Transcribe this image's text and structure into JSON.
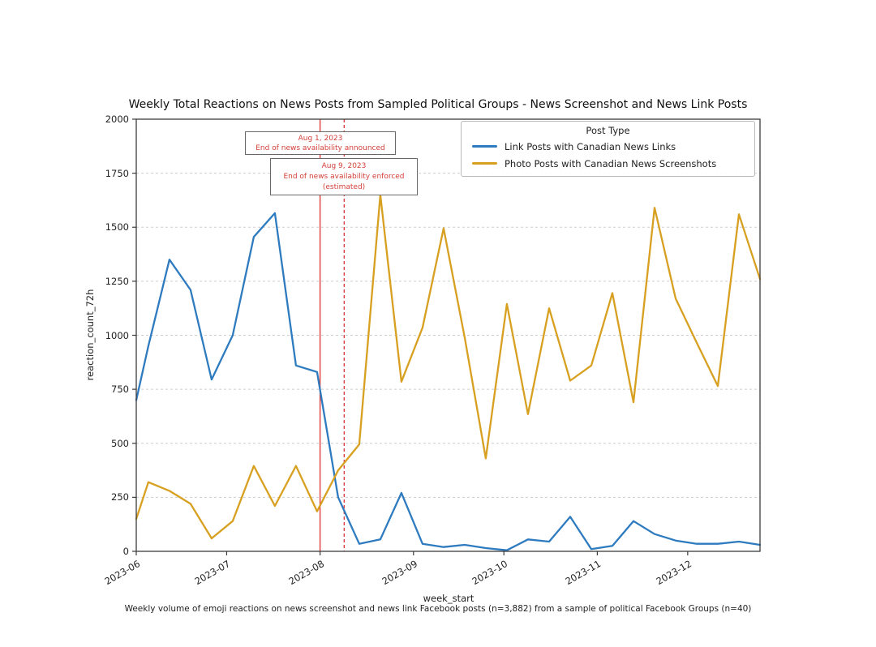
{
  "caption": "Weekly volume of emoji reactions on news screenshot and news link Facebook posts (n=3,882) from a sample of political Facebook Groups (n=40)",
  "colors": {
    "axis": "#3c3c3c",
    "grid": "#cdcdcd",
    "text": "#1a1a1a",
    "vline_red": "#e03c3c",
    "annotation_text": "#d4403a"
  },
  "chart_data": {
    "type": "line",
    "title": "Weekly Total Reactions on News Posts from Sampled Political Groups - News Screenshot and News Link Posts",
    "xlabel": "week_start",
    "ylabel": "reaction_count_72h",
    "xlim": [
      "2023-06-01",
      "2023-12-25"
    ],
    "ylim": [
      0,
      2000
    ],
    "grid": "horizontal-dashed",
    "legend": {
      "title": "Post Type",
      "position": "upper-right"
    },
    "yticks": [
      0,
      250,
      500,
      750,
      1000,
      1250,
      1500,
      1750,
      2000
    ],
    "xticks": [
      {
        "label": "2023-06",
        "date": "2023-06-01"
      },
      {
        "label": "2023-07",
        "date": "2023-07-01"
      },
      {
        "label": "2023-08",
        "date": "2023-08-01"
      },
      {
        "label": "2023-09",
        "date": "2023-09-01"
      },
      {
        "label": "2023-10",
        "date": "2023-10-01"
      },
      {
        "label": "2023-11",
        "date": "2023-11-01"
      },
      {
        "label": "2023-12",
        "date": "2023-12-01"
      }
    ],
    "weeks": [
      "2023-06-01",
      "2023-06-05",
      "2023-06-12",
      "2023-06-19",
      "2023-06-26",
      "2023-07-03",
      "2023-07-10",
      "2023-07-17",
      "2023-07-24",
      "2023-07-31",
      "2023-08-07",
      "2023-08-14",
      "2023-08-21",
      "2023-08-28",
      "2023-09-04",
      "2023-09-11",
      "2023-09-18",
      "2023-09-25",
      "2023-10-02",
      "2023-10-09",
      "2023-10-16",
      "2023-10-23",
      "2023-10-30",
      "2023-11-06",
      "2023-11-13",
      "2023-11-20",
      "2023-11-27",
      "2023-12-04",
      "2023-12-11",
      "2023-12-18",
      "2023-12-25"
    ],
    "series": [
      {
        "name": "Link Posts with Canadian News Links",
        "color": "#2e7bbf",
        "values": [
          700,
          950,
          1350,
          1210,
          795,
          1000,
          1455,
          1565,
          860,
          830,
          250,
          35,
          55,
          270,
          35,
          20,
          30,
          15,
          5,
          55,
          45,
          160,
          10,
          25,
          140,
          80,
          50,
          35,
          35,
          45,
          30
        ]
      },
      {
        "name": "Photo Posts with Canadian News Screenshots",
        "color": "#d8a020",
        "values": [
          150,
          320,
          280,
          220,
          60,
          140,
          395,
          210,
          395,
          185,
          375,
          495,
          1650,
          785,
          1035,
          1495,
          990,
          430,
          1145,
          635,
          1125,
          790,
          860,
          1195,
          690,
          1590,
          1170,
          965,
          765,
          1560,
          1260
        ]
      }
    ],
    "vlines": [
      {
        "date": "2023-08-01",
        "style": "solid",
        "label_lines": [
          "Aug 1, 2023",
          "End of news availability announced"
        ]
      },
      {
        "date": "2023-08-09",
        "style": "dashed",
        "label_lines": [
          "Aug 9, 2023",
          "End of news availability enforced",
          "(estimated)"
        ]
      }
    ]
  }
}
